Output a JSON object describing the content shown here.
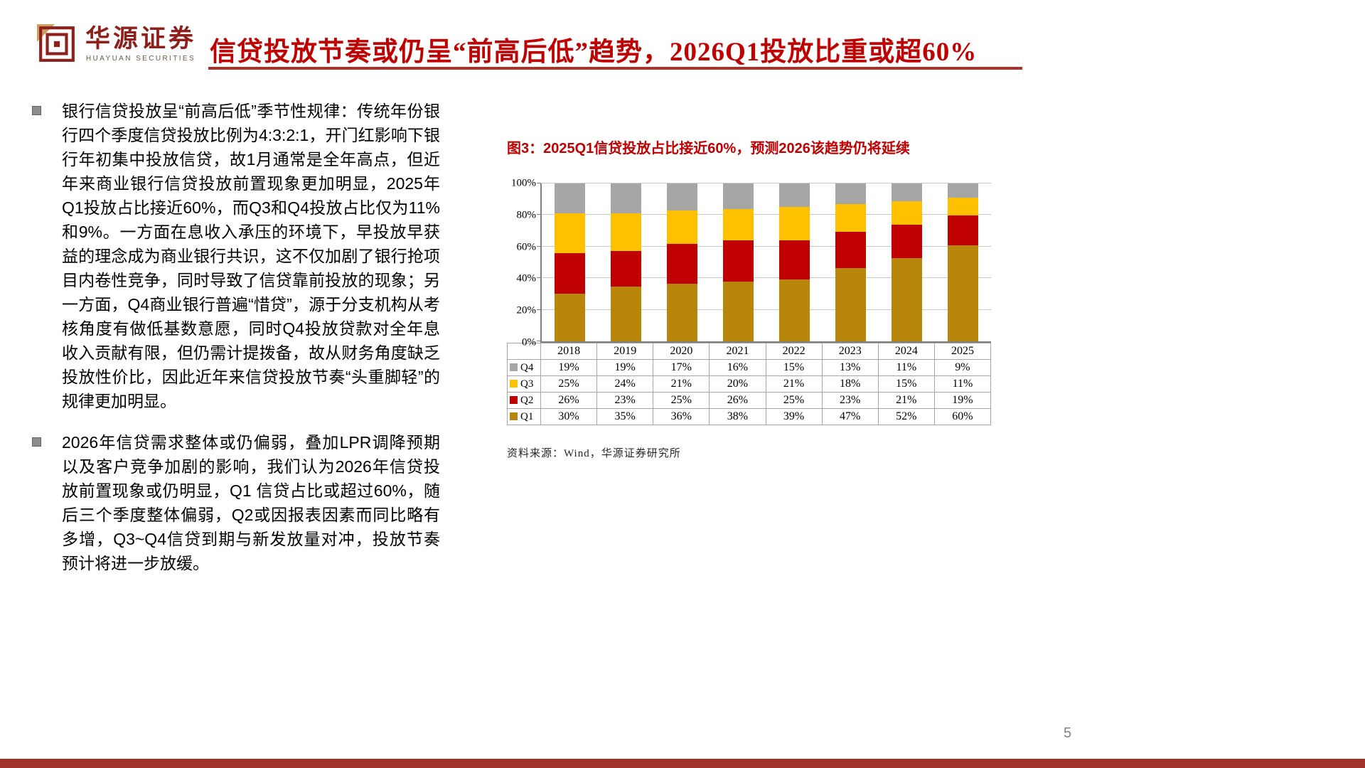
{
  "header": {
    "logo_cn": "华源证券",
    "logo_en": "HUAYUAN SECURITIES",
    "title": "信贷投放节奏或仍呈“前高后低”趋势，2026Q1投放比重或超60%"
  },
  "bullets": [
    {
      "text": "银行信贷投放呈“前高后低”季节性规律：传统年份银行四个季度信贷投放比例为4:3:2:1，开门红影响下银行年初集中投放信贷，故1月通常是全年高点，但近年来商业银行信贷投放前置现象更加明显，2025年Q1投放占比接近60%，而Q3和Q4投放占比仅为11%和9%。一方面在息收入承压的环境下，早投放早获益的理念成为商业银行共识，这不仅加剧了银行抢项目内卷性竞争，同时导致了信贷靠前投放的现象；另一方面，Q4商业银行普遍“惜贷”，源于分支机构从考核角度有做低基数意愿，同时Q4投放贷款对全年息收入贡献有限，但仍需计提拨备，故从财务角度缺乏投放性价比，因此近年来信贷投放节奏“头重脚轻”的规律更加明显。"
    },
    {
      "text": "2026年信贷需求整体或仍偏弱，叠加LPR调降预期以及客户竞争加剧的影响，我们认为2026年信贷投放前置现象或仍明显，Q1 信贷占比或超过60%，随后三个季度整体偏弱，Q2或因报表因素而同比略有多增，Q3~Q4信贷到期与新发放量对冲，投放节奏预计将进一步放缓。"
    }
  ],
  "figure": {
    "title": "图3：2025Q1信贷投放占比接近60%，预测2026该趋势仍将延续",
    "source": "资料来源：Wind，华源证券研究所"
  },
  "chart_data": {
    "type": "bar",
    "stacked": true,
    "title": "图3：2025Q1信贷投放占比接近60%，预测2026该趋势仍将延续",
    "categories": [
      "2018",
      "2019",
      "2020",
      "2021",
      "2022",
      "2023",
      "2024",
      "2025"
    ],
    "series": [
      {
        "name": "Q1",
        "color": "#B8860B",
        "values": [
          30,
          35,
          36,
          38,
          39,
          47,
          52,
          60
        ]
      },
      {
        "name": "Q2",
        "color": "#C00000",
        "values": [
          26,
          23,
          25,
          26,
          25,
          23,
          21,
          19
        ]
      },
      {
        "name": "Q3",
        "color": "#FFC000",
        "values": [
          25,
          24,
          21,
          20,
          21,
          18,
          15,
          11
        ]
      },
      {
        "name": "Q4",
        "color": "#A6A6A6",
        "values": [
          19,
          19,
          17,
          16,
          15,
          13,
          11,
          9
        ]
      }
    ],
    "unit": "%",
    "ylim": [
      0,
      100
    ],
    "yticks": [
      0,
      20,
      40,
      60,
      80,
      100
    ],
    "grid": true,
    "legend_position": "table-left"
  },
  "footer": {
    "page_number": "5"
  },
  "colors": {
    "title_red": "#C00000",
    "rule_dark_red": "#A3342B",
    "logo_red": "#8E1F1B",
    "logo_gold": "#C9A15C"
  }
}
